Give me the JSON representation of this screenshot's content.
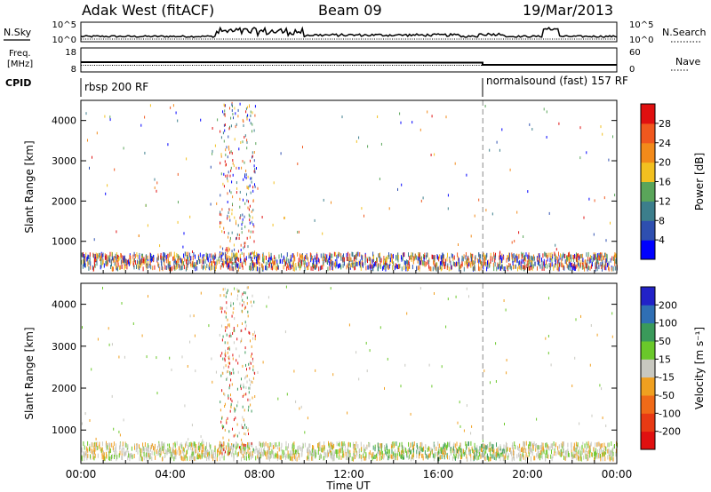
{
  "header": {
    "station": "Adak West (fitACF)",
    "beam": "Beam 09",
    "date": "19/Mar/2013"
  },
  "noise_panel": {
    "left_label": "N.Sky",
    "right_label": "N.Search",
    "left_ticks": [
      "10^5",
      "10^0"
    ],
    "right_ticks": [
      "10^5",
      "10^0"
    ]
  },
  "freq_panel": {
    "left_label_1": "Freq.",
    "left_label_2": "[MHz]",
    "left_ticks": [
      "18",
      "8"
    ],
    "right_label": "Nave",
    "right_ticks": [
      "60",
      "0"
    ]
  },
  "cpid_panel": {
    "label": "CPID",
    "mode_1": "rbsp 200 RF",
    "mode_2": "normalsound (fast) 157 RF"
  },
  "chart_data": [
    {
      "type": "heatmap",
      "name": "power",
      "ylabel": "Slant Range [km]",
      "yticks": [
        "1000",
        "2000",
        "3000",
        "4000"
      ],
      "ylim": [
        200,
        4500
      ],
      "xlim": [
        0,
        24
      ],
      "colorbar_label": "Power [dB]",
      "colorbar_ticks": [
        "4",
        "8",
        "12",
        "16",
        "20",
        "24",
        "28"
      ],
      "colorbar_colors": [
        "#0000ff",
        "#2e4fb0",
        "#3c7e8c",
        "#5aa55a",
        "#f2c020",
        "#f28a1a",
        "#f0581e",
        "#e01010"
      ]
    },
    {
      "type": "heatmap",
      "name": "velocity",
      "ylabel": "Slant Range [km]",
      "yticks": [
        "1000",
        "2000",
        "3000",
        "4000"
      ],
      "ylim": [
        200,
        4500
      ],
      "xlim": [
        0,
        24
      ],
      "colorbar_label": "Velocity [m s⁻¹]",
      "colorbar_ticks": [
        "200",
        "100",
        "50",
        "15",
        "-15",
        "-50",
        "-100",
        "-200"
      ],
      "colorbar_colors": [
        "#2222c8",
        "#2f6fb4",
        "#3a9a5a",
        "#6ac82a",
        "#c8c8c0",
        "#f0a020",
        "#f06a18",
        "#e83a14",
        "#e01010"
      ]
    }
  ],
  "x_axis": {
    "ticks": [
      "00:00",
      "04:00",
      "08:00",
      "12:00",
      "16:00",
      "20:00",
      "00:00"
    ],
    "label": "Time UT"
  }
}
